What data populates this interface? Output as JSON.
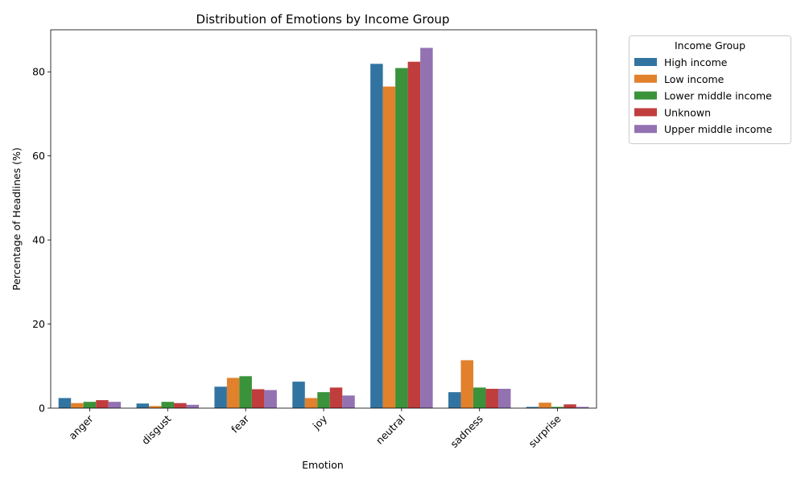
{
  "chart_data": {
    "type": "bar",
    "title": "Distribution of Emotions by Income Group",
    "xlabel": "Emotion",
    "ylabel": "Percentage of Headlines (%)",
    "ylim": [
      0,
      90
    ],
    "yticks": [
      0,
      20,
      40,
      60,
      80
    ],
    "grid": false,
    "legend_title": "Income Group",
    "legend_position": "outside-top-right",
    "categories": [
      "anger",
      "disgust",
      "fear",
      "joy",
      "neutral",
      "sadness",
      "surprise"
    ],
    "series": [
      {
        "name": "High income",
        "color": "#3274a1",
        "values": [
          2.4,
          1.1,
          5.1,
          6.3,
          81.9,
          3.8,
          0.3
        ]
      },
      {
        "name": "Low income",
        "color": "#e1812c",
        "values": [
          1.2,
          0.5,
          7.2,
          2.4,
          76.5,
          11.4,
          1.3
        ]
      },
      {
        "name": "Lower middle income",
        "color": "#3a923a",
        "values": [
          1.5,
          1.5,
          7.6,
          3.8,
          80.9,
          4.9,
          0.3
        ]
      },
      {
        "name": "Unknown",
        "color": "#c03d3e",
        "values": [
          1.9,
          1.2,
          4.5,
          4.9,
          82.4,
          4.6,
          0.9
        ]
      },
      {
        "name": "Upper middle income",
        "color": "#9372b2",
        "values": [
          1.5,
          0.8,
          4.3,
          3.0,
          85.7,
          4.6,
          0.3
        ]
      }
    ]
  }
}
